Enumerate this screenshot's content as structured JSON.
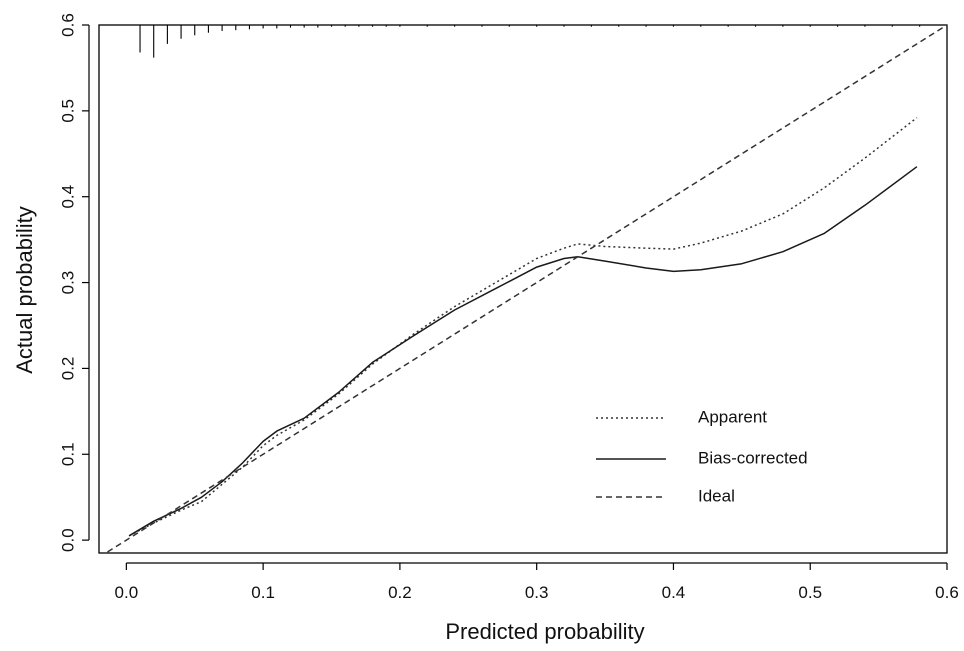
{
  "chart_data": {
    "type": "line",
    "title": "",
    "xlabel": "Predicted probability",
    "ylabel": "Actual probability",
    "xlim": [
      -0.02,
      0.6
    ],
    "ylim": [
      -0.015,
      0.6
    ],
    "x_ticks": [
      "0.0",
      "0.1",
      "0.2",
      "0.3",
      "0.4",
      "0.5",
      "0.6"
    ],
    "y_ticks": [
      "0.0",
      "0.1",
      "0.2",
      "0.3",
      "0.4",
      "0.5",
      "0.6"
    ],
    "grid": false,
    "legend_position": "bottom-right",
    "series": [
      {
        "name": "Apparent",
        "line_style": "dotted",
        "color": "#333333",
        "points": [
          [
            0.002,
            0.005
          ],
          [
            0.02,
            0.02
          ],
          [
            0.04,
            0.035
          ],
          [
            0.055,
            0.045
          ],
          [
            0.07,
            0.065
          ],
          [
            0.085,
            0.085
          ],
          [
            0.1,
            0.11
          ],
          [
            0.11,
            0.122
          ],
          [
            0.13,
            0.14
          ],
          [
            0.155,
            0.17
          ],
          [
            0.18,
            0.205
          ],
          [
            0.21,
            0.24
          ],
          [
            0.24,
            0.272
          ],
          [
            0.27,
            0.3
          ],
          [
            0.3,
            0.328
          ],
          [
            0.32,
            0.34
          ],
          [
            0.33,
            0.345
          ],
          [
            0.35,
            0.342
          ],
          [
            0.38,
            0.34
          ],
          [
            0.4,
            0.339
          ],
          [
            0.42,
            0.346
          ],
          [
            0.45,
            0.36
          ],
          [
            0.48,
            0.38
          ],
          [
            0.51,
            0.41
          ],
          [
            0.54,
            0.445
          ],
          [
            0.578,
            0.492
          ]
        ]
      },
      {
        "name": "Bias-corrected",
        "line_style": "solid",
        "color": "#1a1a1a",
        "points": [
          [
            0.002,
            0.005
          ],
          [
            0.02,
            0.022
          ],
          [
            0.04,
            0.037
          ],
          [
            0.055,
            0.05
          ],
          [
            0.07,
            0.068
          ],
          [
            0.085,
            0.09
          ],
          [
            0.1,
            0.115
          ],
          [
            0.11,
            0.127
          ],
          [
            0.13,
            0.142
          ],
          [
            0.155,
            0.172
          ],
          [
            0.18,
            0.207
          ],
          [
            0.21,
            0.238
          ],
          [
            0.24,
            0.268
          ],
          [
            0.27,
            0.293
          ],
          [
            0.3,
            0.318
          ],
          [
            0.32,
            0.328
          ],
          [
            0.33,
            0.33
          ],
          [
            0.35,
            0.325
          ],
          [
            0.38,
            0.317
          ],
          [
            0.4,
            0.313
          ],
          [
            0.42,
            0.315
          ],
          [
            0.45,
            0.322
          ],
          [
            0.48,
            0.336
          ],
          [
            0.51,
            0.357
          ],
          [
            0.54,
            0.39
          ],
          [
            0.578,
            0.435
          ]
        ]
      },
      {
        "name": "Ideal",
        "line_style": "dashed",
        "color": "#333333",
        "points": [
          [
            -0.02,
            -0.02
          ],
          [
            0.6,
            0.6
          ]
        ]
      }
    ],
    "rug": {
      "position": "top",
      "x": [
        0.01,
        0.02,
        0.03,
        0.04,
        0.05,
        0.06,
        0.07,
        0.08,
        0.09,
        0.1,
        0.11,
        0.12,
        0.13,
        0.14,
        0.15,
        0.16,
        0.17,
        0.18,
        0.19,
        0.2,
        0.22,
        0.24,
        0.26,
        0.28,
        0.3,
        0.32,
        0.34,
        0.36,
        0.38,
        0.4,
        0.42,
        0.44,
        0.46,
        0.48,
        0.5,
        0.52,
        0.54,
        0.56,
        0.58
      ],
      "height": [
        0.032,
        0.038,
        0.022,
        0.016,
        0.012,
        0.009,
        0.007,
        0.006,
        0.005,
        0.004,
        0.004,
        0.003,
        0.003,
        0.003,
        0.002,
        0.002,
        0.002,
        0.002,
        0.002,
        0.002,
        0.002,
        0.002,
        0.002,
        0.002,
        0.002,
        0.002,
        0.002,
        0.002,
        0.002,
        0.002,
        0.002,
        0.002,
        0.002,
        0.002,
        0.002,
        0.002,
        0.002,
        0.002,
        0.002
      ]
    }
  }
}
